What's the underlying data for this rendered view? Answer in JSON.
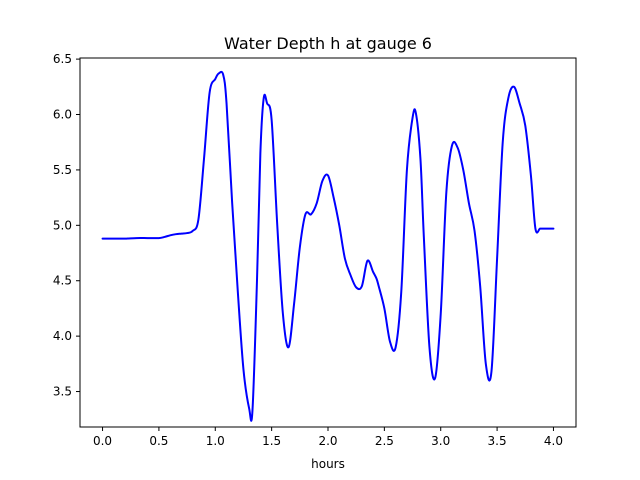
{
  "chart_data": {
    "type": "line",
    "title": "Water Depth h at gauge 6",
    "xlabel": "hours",
    "ylabel": "",
    "xlim": [
      -0.2,
      4.2
    ],
    "ylim": [
      3.18,
      6.51
    ],
    "xticks": [
      0.0,
      0.5,
      1.0,
      1.5,
      2.0,
      2.5,
      3.0,
      3.5,
      4.0
    ],
    "xtick_labels": [
      "0.0",
      "0.5",
      "1.0",
      "1.5",
      "2.0",
      "2.5",
      "3.0",
      "3.5",
      "4.0"
    ],
    "yticks": [
      3.5,
      4.0,
      4.5,
      5.0,
      5.5,
      6.0,
      6.5
    ],
    "ytick_labels": [
      "3.5",
      "4.0",
      "4.5",
      "5.0",
      "5.5",
      "6.0",
      "6.5"
    ],
    "grid": false,
    "colors": {
      "line": "#0000ff"
    },
    "series": [
      {
        "x": [
          0.0,
          0.1,
          0.2,
          0.3,
          0.4,
          0.5,
          0.55,
          0.6,
          0.65,
          0.7,
          0.75,
          0.8,
          0.85,
          0.9,
          0.95,
          1.0,
          1.03,
          1.07,
          1.1,
          1.15,
          1.2,
          1.25,
          1.3,
          1.33,
          1.37,
          1.4,
          1.43,
          1.46,
          1.5,
          1.55,
          1.6,
          1.65,
          1.7,
          1.75,
          1.8,
          1.85,
          1.9,
          1.95,
          2.0,
          2.05,
          2.1,
          2.15,
          2.2,
          2.25,
          2.3,
          2.35,
          2.4,
          2.43,
          2.45,
          2.5,
          2.55,
          2.6,
          2.65,
          2.7,
          2.75,
          2.78,
          2.82,
          2.85,
          2.9,
          2.95,
          3.0,
          3.05,
          3.1,
          3.15,
          3.2,
          3.25,
          3.3,
          3.35,
          3.4,
          3.45,
          3.5,
          3.55,
          3.6,
          3.65,
          3.7,
          3.75,
          3.8,
          3.84,
          3.88,
          3.9,
          3.95,
          4.0
        ],
        "y": [
          4.88,
          4.88,
          4.88,
          4.885,
          4.885,
          4.885,
          4.895,
          4.91,
          4.92,
          4.925,
          4.93,
          4.95,
          5.05,
          5.6,
          6.2,
          6.32,
          6.37,
          6.36,
          6.1,
          5.2,
          4.4,
          3.7,
          3.35,
          3.33,
          4.5,
          5.65,
          6.15,
          6.1,
          5.95,
          5.0,
          4.2,
          3.9,
          4.3,
          4.8,
          5.1,
          5.1,
          5.2,
          5.4,
          5.45,
          5.25,
          5.0,
          4.7,
          4.55,
          4.44,
          4.45,
          4.68,
          4.58,
          4.52,
          4.45,
          4.25,
          3.95,
          3.9,
          4.4,
          5.5,
          5.97,
          6.01,
          5.6,
          4.9,
          3.9,
          3.62,
          4.2,
          5.3,
          5.72,
          5.7,
          5.5,
          5.2,
          4.95,
          4.45,
          3.75,
          3.68,
          4.7,
          5.75,
          6.15,
          6.25,
          6.1,
          5.9,
          5.45,
          4.97,
          4.97,
          4.97,
          4.97,
          4.97
        ]
      }
    ]
  }
}
